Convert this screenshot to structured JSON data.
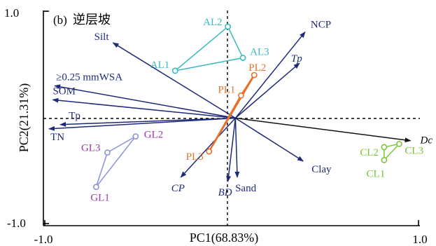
{
  "chart_data": {
    "type": "scatter",
    "subtype": "PCA biplot",
    "panel_label": "(b)",
    "title": "逆层坡",
    "xlabel": "PC1(68.83%)",
    "ylabel": "PC2(21.31%)",
    "xlim": [
      -1.0,
      1.0
    ],
    "ylim": [
      -1.0,
      1.0
    ],
    "x_ticks": [
      "-1.0",
      "1.0"
    ],
    "y_ticks": [
      "1.0",
      "-1.0"
    ],
    "reference_lines": "dashed lines at x=0 and y=0",
    "origin": [
      0.02,
      0.0
    ],
    "colors": {
      "vectors": "#1e2a78",
      "Dc_vector": "#111111",
      "AL": "#3cb8c0",
      "PL": "#e8712a",
      "GL": "#8a94d6",
      "GL_label": "#9b3aa4",
      "CL": "#7ac43c"
    },
    "vectors": [
      {
        "name": "Silt",
        "x": -0.63,
        "y": 0.7,
        "italic": false
      },
      {
        "name": "NCP",
        "x": 0.39,
        "y": 0.8,
        "italic": false
      },
      {
        "name": "Tp",
        "x": 0.36,
        "y": 0.51,
        "italic": true
      },
      {
        "name": "≥0.25 mmWSA",
        "x": -0.94,
        "y": 0.3,
        "italic": false
      },
      {
        "name": "SOM",
        "x": -0.95,
        "y": 0.17,
        "italic": false
      },
      {
        "name": "Tp",
        "x": -0.91,
        "y": -0.06,
        "italic": false
      },
      {
        "name": "TN",
        "x": -0.97,
        "y": -0.1,
        "italic": false
      },
      {
        "name": "Dc",
        "x": 0.95,
        "y": -0.21,
        "italic": true
      },
      {
        "name": "Clay",
        "x": 0.38,
        "y": -0.4,
        "italic": false
      },
      {
        "name": "CP",
        "x": -0.27,
        "y": -0.55,
        "italic": true
      },
      {
        "name": "BD",
        "x": -0.02,
        "y": -0.59,
        "italic": true
      },
      {
        "name": "Sand",
        "x": 0.03,
        "y": -0.55,
        "italic": false
      }
    ],
    "groups": [
      {
        "group": "AL",
        "points": [
          {
            "name": "AL1",
            "x": -0.3,
            "y": 0.44
          },
          {
            "name": "AL2",
            "x": -0.02,
            "y": 0.85
          },
          {
            "name": "AL3",
            "x": 0.06,
            "y": 0.56
          }
        ]
      },
      {
        "group": "PL",
        "points": [
          {
            "name": "PL1",
            "x": 0.05,
            "y": 0.21
          },
          {
            "name": "PL2",
            "x": 0.12,
            "y": 0.4
          },
          {
            "name": "PL3",
            "x": -0.12,
            "y": -0.31
          }
        ]
      },
      {
        "group": "GL",
        "points": [
          {
            "name": "GL1",
            "x": -0.72,
            "y": -0.64
          },
          {
            "name": "GL2",
            "x": -0.51,
            "y": -0.17
          },
          {
            "name": "GL3",
            "x": -0.66,
            "y": -0.32
          }
        ]
      },
      {
        "group": "CL",
        "points": [
          {
            "name": "CL1",
            "x": 0.81,
            "y": -0.39
          },
          {
            "name": "CL2",
            "x": 0.81,
            "y": -0.27
          },
          {
            "name": "CL3",
            "x": 0.89,
            "y": -0.24
          }
        ]
      }
    ]
  }
}
